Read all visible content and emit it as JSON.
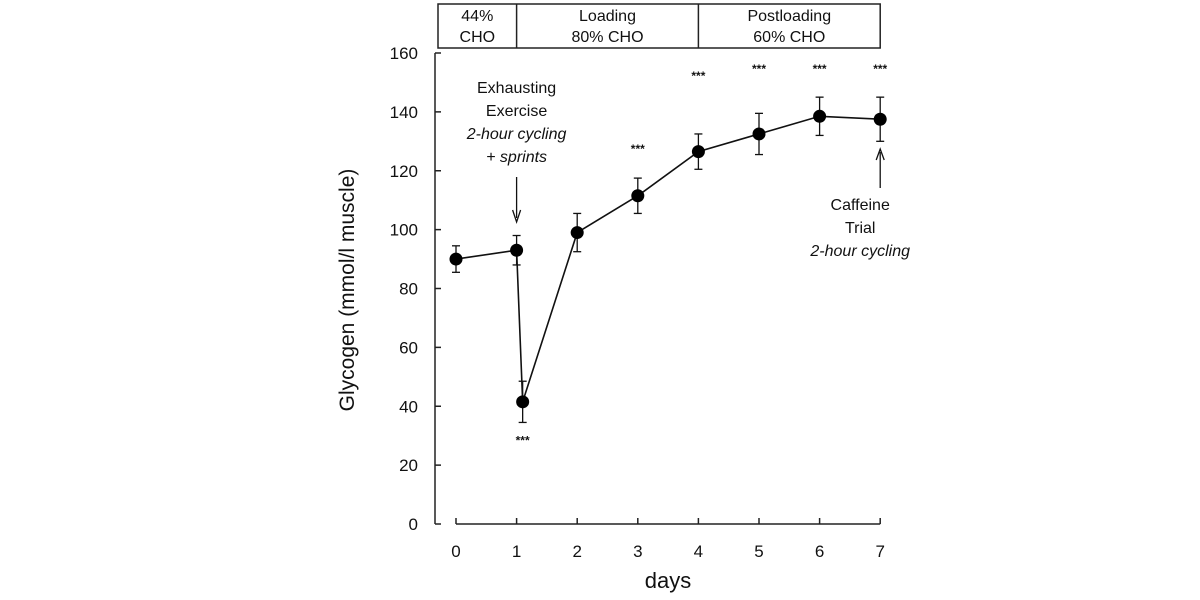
{
  "chart_data": {
    "type": "line",
    "title": "",
    "xlabel": "days",
    "ylabel": "Glycogen (mmol/l muscle)",
    "xlim": [
      0,
      7
    ],
    "ylim": [
      0,
      160
    ],
    "xticks": [
      "0",
      "1",
      "2",
      "3",
      "4",
      "5",
      "6",
      "7"
    ],
    "yticks": [
      "0",
      "20",
      "40",
      "60",
      "80",
      "100",
      "120",
      "140",
      "160"
    ],
    "grid": false,
    "series": [
      {
        "x": [
          0,
          1,
          1.1,
          2,
          3,
          4,
          5,
          6,
          7
        ],
        "y": [
          90,
          93,
          41.5,
          99,
          111.5,
          126.5,
          132.5,
          138.5,
          137.5
        ],
        "error": [
          4.5,
          5,
          7,
          6.5,
          6,
          6,
          7,
          6.5,
          7.5
        ],
        "significance": [
          "",
          "",
          "***",
          "",
          "***",
          "***",
          "***",
          "***",
          "***"
        ]
      }
    ],
    "phases": [
      {
        "lines": [
          "44%",
          "CHO"
        ],
        "from": 0,
        "to": 1
      },
      {
        "lines": [
          "Loading",
          "80% CHO"
        ],
        "from": 1,
        "to": 4
      },
      {
        "lines": [
          "Postloading",
          "60% CHO"
        ],
        "from": 4,
        "to": 7
      }
    ],
    "annotations": [
      {
        "at_day": 1,
        "lines": [
          "Exhausting",
          "Exercise"
        ],
        "italic_lines": [
          "2-hour cycling",
          "+ sprints"
        ]
      },
      {
        "at_day": 7,
        "lines": [
          "Caffeine",
          "Trial"
        ],
        "italic_lines": [
          "2-hour cycling"
        ]
      }
    ]
  }
}
